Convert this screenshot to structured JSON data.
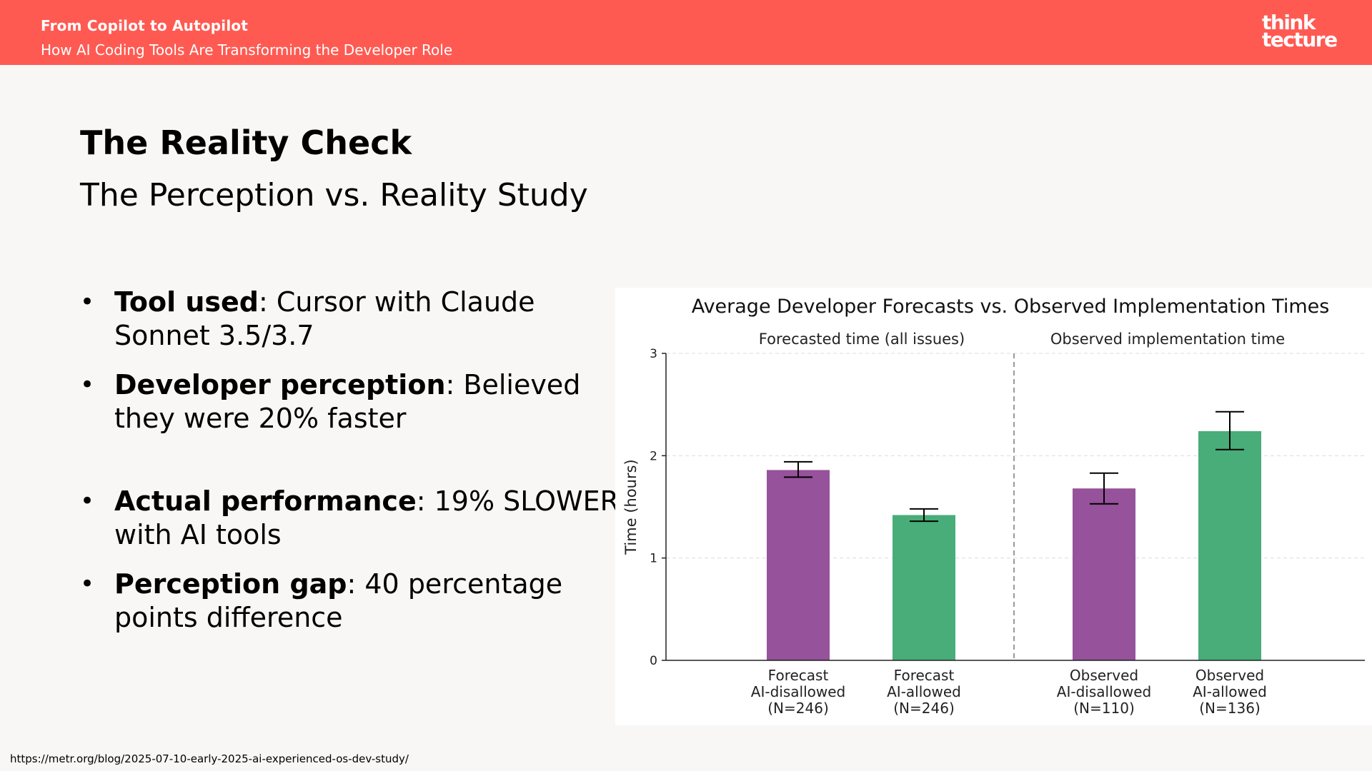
{
  "header": {
    "title": "From Copilot to Autopilot",
    "subtitle": "How AI Coding Tools Are Transforming the Developer Role",
    "logo_line1": "think",
    "logo_line2": "tecture"
  },
  "slide": {
    "title": "The Reality Check",
    "subtitle": "The Perception vs. Reality Study",
    "bullets": [
      {
        "label": "Tool used",
        "text": ": Cursor with Claude Sonnet 3.5/3.7"
      },
      {
        "label": "Developer perception",
        "text": ": Believed they were 20% faster"
      },
      {
        "label": "Actual performance",
        "text": ": 19% SLOWER with AI tools"
      },
      {
        "label": "Perception gap",
        "text": ": 40 percentage points difference"
      }
    ],
    "source_url": "https://metr.org/blog/2025-07-10-early-2025-ai-experienced-os-dev-study/"
  },
  "chart_data": {
    "type": "bar",
    "title": "Average Developer Forecasts vs. Observed Implementation Times",
    "ylabel": "Time (hours)",
    "xlabel": "",
    "ylim": [
      0,
      3
    ],
    "yticks": [
      0,
      1,
      2,
      3
    ],
    "grid": true,
    "groups": [
      {
        "label": "Forecasted time (all issues)"
      },
      {
        "label": "Observed implementation time"
      }
    ],
    "categories": [
      "Forecast\nAI-disallowed\n(N=246)",
      "Forecast\nAI-allowed\n(N=246)",
      "Observed\nAI-disallowed\n(N=110)",
      "Observed\nAI-allowed\n(N=136)"
    ],
    "values": [
      1.86,
      1.42,
      1.68,
      2.24
    ],
    "error_low": [
      1.79,
      1.36,
      1.53,
      2.06
    ],
    "error_high": [
      1.94,
      1.48,
      1.83,
      2.43
    ],
    "colors": [
      "#96529a",
      "#48ad79",
      "#96529a",
      "#48ad79"
    ]
  }
}
